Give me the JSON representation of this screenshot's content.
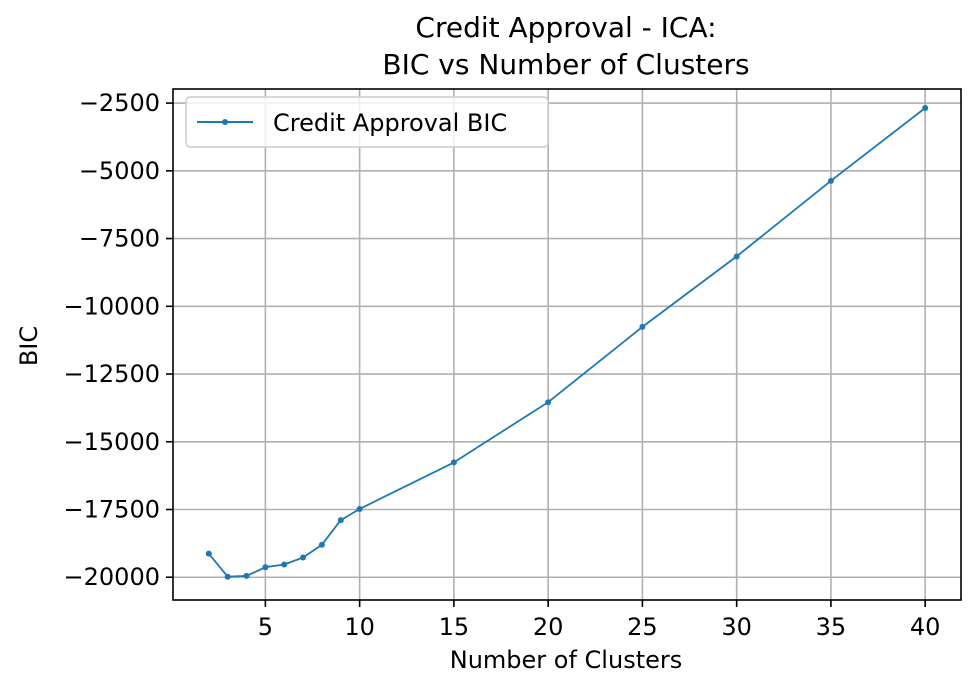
{
  "chart_data": {
    "type": "line",
    "title_line1": "Credit Approval - ICA:",
    "title_line2": "BIC vs Number of Clusters",
    "xlabel": "Number of Clusters",
    "ylabel": "BIC",
    "xlim": [
      0.1,
      41.9
    ],
    "ylim": [
      -20840,
      -1980
    ],
    "x_ticks": [
      5,
      10,
      15,
      20,
      25,
      30,
      35,
      40
    ],
    "y_ticks": [
      -2500,
      -5000,
      -7500,
      -10000,
      -12500,
      -15000,
      -17500,
      -20000
    ],
    "x_tick_labels": [
      "5",
      "10",
      "15",
      "20",
      "25",
      "30",
      "35",
      "40"
    ],
    "y_tick_labels": [
      "−2500",
      "−5000",
      "−7500",
      "−10000",
      "−12500",
      "−15000",
      "−17500",
      "−20000"
    ],
    "grid": true,
    "legend_position": "top-left",
    "series": [
      {
        "name": "Credit Approval BIC",
        "color": "#1f77b4",
        "x": [
          2,
          3,
          4,
          5,
          6,
          7,
          8,
          9,
          10,
          15,
          20,
          25,
          30,
          35,
          40
        ],
        "y": [
          -19130,
          -19980,
          -19950,
          -19630,
          -19530,
          -19270,
          -18800,
          -17890,
          -17480,
          -15760,
          -13540,
          -10760,
          -8160,
          -5370,
          -2680
        ]
      }
    ]
  }
}
